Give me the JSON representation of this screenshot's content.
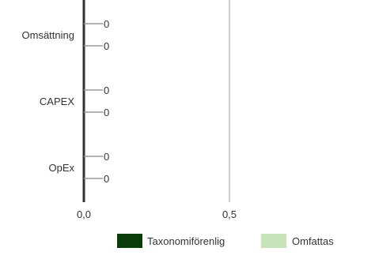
{
  "chart_data": {
    "type": "bar",
    "orientation": "horizontal",
    "title": "",
    "xlabel": "",
    "ylabel": "",
    "categories": [
      "Omsättning",
      "CAPEX",
      "OpEx"
    ],
    "series": [
      {
        "name": "Taxonomiförenlig",
        "color": "#0b3d0b",
        "values": [
          0,
          0,
          0
        ],
        "labels": [
          "0",
          "0",
          "0"
        ]
      },
      {
        "name": "Omfattas",
        "color": "#c6e2b8",
        "values": [
          0,
          0,
          0
        ],
        "labels": [
          "0",
          "0",
          "0"
        ]
      }
    ],
    "xlim": [
      0,
      0.6
    ],
    "x_ticks": [
      0,
      0.5
    ],
    "x_tick_labels": [
      "0,0",
      "0,5"
    ],
    "grid": true,
    "legend_position": "bottom-right",
    "colors": {
      "axis": "#333333",
      "grid": "#cccccc",
      "connector": "#999999",
      "text": "#333333"
    }
  }
}
